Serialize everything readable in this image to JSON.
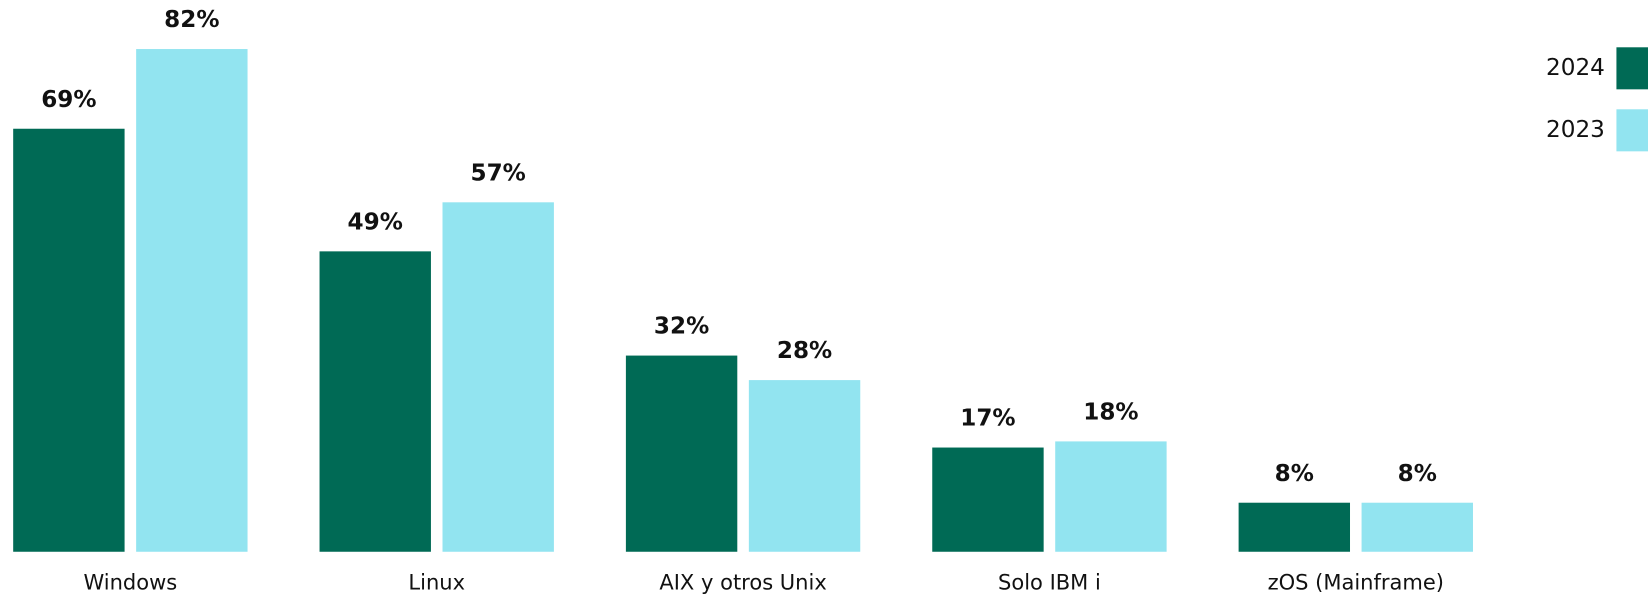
{
  "chart_data": {
    "type": "grouped_bar",
    "categories": [
      "Windows",
      "Linux",
      "AIX y otros Unix",
      "Solo IBM i",
      "zOS (Mainframe)"
    ],
    "series": [
      {
        "name": "2024",
        "color": "#006a55",
        "values": [
          69,
          49,
          32,
          17,
          8
        ],
        "value_labels": [
          "69%",
          "49%",
          "32%",
          "17%",
          "8%"
        ]
      },
      {
        "name": "2023",
        "color": "#92e4f0",
        "values": [
          82,
          57,
          28,
          18,
          8
        ],
        "value_labels": [
          "82%",
          "57%",
          "28%",
          "18%",
          "8%"
        ]
      }
    ],
    "ylim": [
      0,
      90
    ],
    "legend": "top-right"
  }
}
